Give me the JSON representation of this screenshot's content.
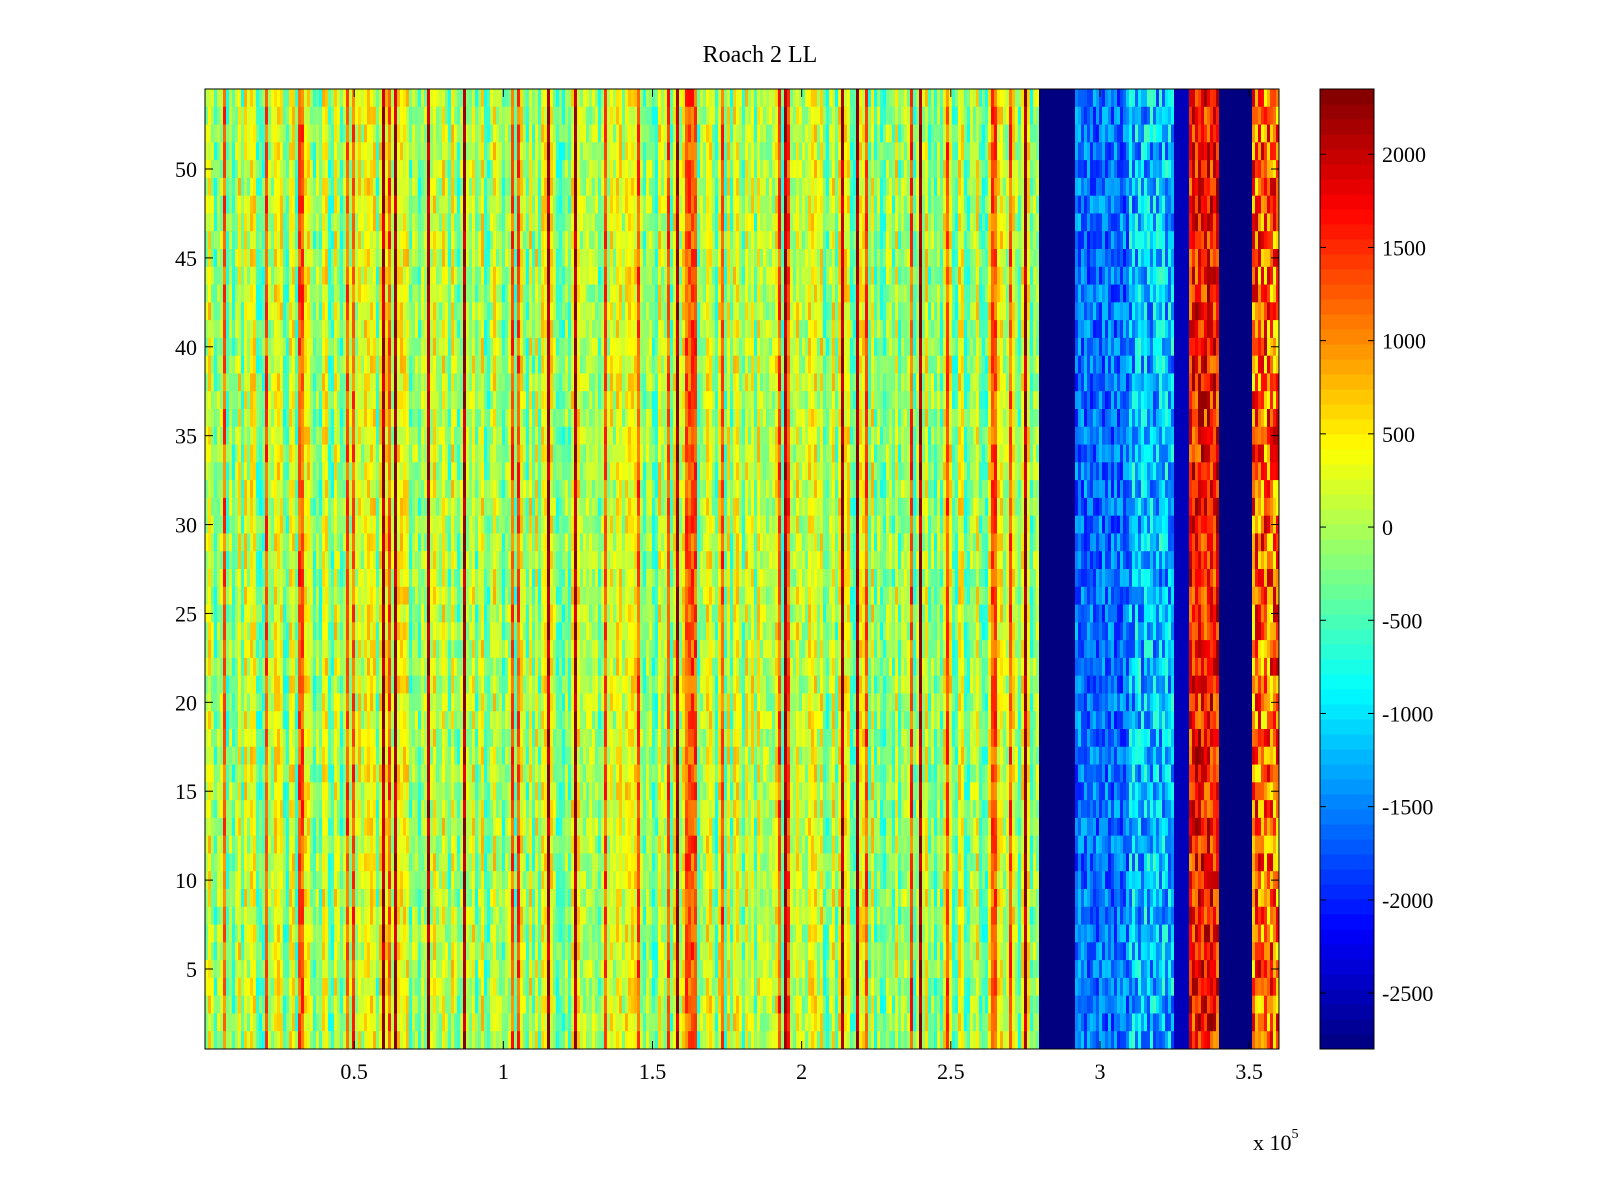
{
  "chart_data": {
    "type": "heatmap",
    "title": "Roach 2 LL",
    "x_range": [
      0,
      360000
    ],
    "y_range": [
      0.5,
      54.5
    ],
    "x_ticks": [
      50000,
      100000,
      150000,
      200000,
      250000,
      300000,
      350000
    ],
    "x_tick_labels": [
      "0.5",
      "1",
      "1.5",
      "2",
      "2.5",
      "3",
      "3.5"
    ],
    "x_exponent_label": {
      "base": "x 10",
      "power": "5"
    },
    "y_ticks": [
      5,
      10,
      15,
      20,
      25,
      30,
      35,
      40,
      45,
      50
    ],
    "y_tick_labels": [
      "5",
      "10",
      "15",
      "20",
      "25",
      "30",
      "35",
      "40",
      "45",
      "50"
    ],
    "n_rows": 54,
    "colormap": "jet",
    "color_range": [
      -2800,
      2350
    ],
    "colorbar_ticks": [
      2000,
      1500,
      1000,
      500,
      0,
      -500,
      -1000,
      -1500,
      -2000,
      -2500
    ],
    "colorbar_tick_labels": [
      "2000",
      "1500",
      "1000",
      "500",
      "0",
      "-500",
      "-1000",
      "-1500",
      "-2000",
      "-2500"
    ],
    "regions": [
      {
        "x_start": 0,
        "x_end": 280000,
        "description": "noisy",
        "mean_value": 100,
        "spread": 400
      },
      {
        "x_start": 280000,
        "x_end": 292000,
        "mean_value": -2800
      },
      {
        "x_start": 292000,
        "x_end": 310000,
        "mean_value": -1600,
        "spread": 500
      },
      {
        "x_start": 310000,
        "x_end": 325000,
        "mean_value": -1200,
        "spread": 700
      },
      {
        "x_start": 325000,
        "x_end": 330000,
        "mean_value": -2500
      },
      {
        "x_start": 330000,
        "x_end": 340000,
        "mean_value": 1600,
        "spread": 700
      },
      {
        "x_start": 340000,
        "x_end": 351000,
        "mean_value": -2800
      },
      {
        "x_start": 351000,
        "x_end": 360000,
        "mean_value": 1200,
        "spread": 900
      }
    ]
  }
}
